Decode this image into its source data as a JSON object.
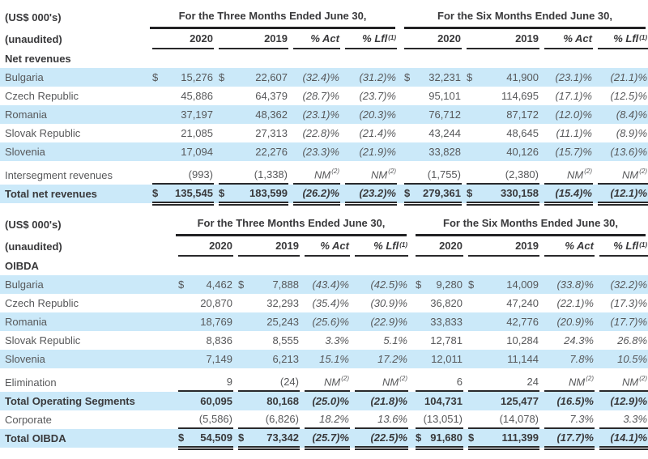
{
  "colors": {
    "row_highlight": "#cbe9f9",
    "text": "#57585a",
    "text_dark": "#39393b",
    "rule_line": "#29292b"
  },
  "labels": {
    "currency_units": "(US$ 000's)",
    "unaudited": "(unaudited)",
    "three_months": "For the Three Months Ended June 30,",
    "six_months": "For the Six Months Ended June 30,",
    "year_2020": "2020",
    "year_2019": "2019",
    "pct_act": "% Act",
    "pct_lfl": "% Lfl",
    "pct_lfl_sup": "(1)",
    "dollar": "$"
  },
  "tables": [
    {
      "id": "net_revenues",
      "section": "Net revenues",
      "rows": [
        {
          "label": "Bulgaria",
          "blue": true,
          "cells": [
            {
              "t": "15,276",
              "d": 1
            },
            {
              "t": "22,607",
              "d": 1
            },
            {
              "t": "(32.4)%",
              "i": 1
            },
            {
              "t": "(31.2)%",
              "i": 1
            },
            {
              "t": "32,231",
              "d": 1
            },
            {
              "t": "41,900",
              "d": 1
            },
            {
              "t": "(23.1)%",
              "i": 1
            },
            {
              "t": "(21.1)%",
              "i": 1
            }
          ]
        },
        {
          "label": "Czech Republic",
          "cells": [
            {
              "t": "45,886"
            },
            {
              "t": "64,379"
            },
            {
              "t": "(28.7)%",
              "i": 1
            },
            {
              "t": "(23.7)%",
              "i": 1
            },
            {
              "t": "95,101"
            },
            {
              "t": "114,695"
            },
            {
              "t": "(17.1)%",
              "i": 1
            },
            {
              "t": "(12.5)%",
              "i": 1
            }
          ]
        },
        {
          "label": "Romania",
          "blue": true,
          "cells": [
            {
              "t": "37,197"
            },
            {
              "t": "48,362"
            },
            {
              "t": "(23.1)%",
              "i": 1
            },
            {
              "t": "(20.3)%",
              "i": 1
            },
            {
              "t": "76,712"
            },
            {
              "t": "87,172"
            },
            {
              "t": "(12.0)%",
              "i": 1
            },
            {
              "t": "(8.4)%",
              "i": 1
            }
          ]
        },
        {
          "label": "Slovak Republic",
          "cells": [
            {
              "t": "21,085"
            },
            {
              "t": "27,313"
            },
            {
              "t": "(22.8)%",
              "i": 1
            },
            {
              "t": "(21.4)%",
              "i": 1
            },
            {
              "t": "43,244"
            },
            {
              "t": "48,645"
            },
            {
              "t": "(11.1)%",
              "i": 1
            },
            {
              "t": "(8.9)%",
              "i": 1
            }
          ]
        },
        {
          "label": "Slovenia",
          "blue": true,
          "cells": [
            {
              "t": "17,094"
            },
            {
              "t": "22,276"
            },
            {
              "t": "(23.3)%",
              "i": 1
            },
            {
              "t": "(21.9)%",
              "i": 1
            },
            {
              "t": "33,828"
            },
            {
              "t": "40,126"
            },
            {
              "t": "(15.7)%",
              "i": 1
            },
            {
              "t": "(13.6)%",
              "i": 1
            }
          ]
        },
        {
          "label": "Intersegment revenues",
          "gap_above": true,
          "ul": "single",
          "cells": [
            {
              "t": "(993)"
            },
            {
              "t": "(1,338)"
            },
            {
              "t": "NM",
              "i": 1,
              "sup": "(2)"
            },
            {
              "t": "NM",
              "i": 1,
              "sup": "(2)"
            },
            {
              "t": "(1,755)"
            },
            {
              "t": "(2,380)"
            },
            {
              "t": "NM",
              "i": 1,
              "sup": "(2)"
            },
            {
              "t": "NM",
              "i": 1,
              "sup": "(2)"
            }
          ]
        },
        {
          "label": "Total net revenues",
          "blue": true,
          "bold": true,
          "ul": "double",
          "cells": [
            {
              "t": "135,545",
              "d": 1
            },
            {
              "t": "183,599",
              "d": 1
            },
            {
              "t": "(26.2)%",
              "i": 1
            },
            {
              "t": "(23.2)%",
              "i": 1
            },
            {
              "t": "279,361",
              "d": 1
            },
            {
              "t": "330,158",
              "d": 1
            },
            {
              "t": "(15.4)%",
              "i": 1
            },
            {
              "t": "(12.1)%",
              "i": 1
            }
          ]
        }
      ]
    },
    {
      "id": "oibda",
      "section": "OIBDA",
      "rows": [
        {
          "label": "Bulgaria",
          "blue": true,
          "cells": [
            {
              "t": "4,462",
              "d": 1
            },
            {
              "t": "7,888",
              "d": 1
            },
            {
              "t": "(43.4)%",
              "i": 1
            },
            {
              "t": "(42.5)%",
              "i": 1
            },
            {
              "t": "9,280",
              "d": 1
            },
            {
              "t": "14,009",
              "d": 1
            },
            {
              "t": "(33.8)%",
              "i": 1
            },
            {
              "t": "(32.2)%",
              "i": 1
            }
          ]
        },
        {
          "label": "Czech Republic",
          "cells": [
            {
              "t": "20,870"
            },
            {
              "t": "32,293"
            },
            {
              "t": "(35.4)%",
              "i": 1
            },
            {
              "t": "(30.9)%",
              "i": 1
            },
            {
              "t": "36,820"
            },
            {
              "t": "47,240"
            },
            {
              "t": "(22.1)%",
              "i": 1
            },
            {
              "t": "(17.3)%",
              "i": 1
            }
          ]
        },
        {
          "label": "Romania",
          "blue": true,
          "cells": [
            {
              "t": "18,769"
            },
            {
              "t": "25,243"
            },
            {
              "t": "(25.6)%",
              "i": 1
            },
            {
              "t": "(22.9)%",
              "i": 1
            },
            {
              "t": "33,833"
            },
            {
              "t": "42,776"
            },
            {
              "t": "(20.9)%",
              "i": 1
            },
            {
              "t": "(17.7)%",
              "i": 1
            }
          ]
        },
        {
          "label": "Slovak Republic",
          "cells": [
            {
              "t": "8,836"
            },
            {
              "t": "8,555"
            },
            {
              "t": "3.3%",
              "i": 1
            },
            {
              "t": "5.1%",
              "i": 1
            },
            {
              "t": "12,781"
            },
            {
              "t": "10,284"
            },
            {
              "t": "24.3%",
              "i": 1
            },
            {
              "t": "26.8%",
              "i": 1
            }
          ]
        },
        {
          "label": "Slovenia",
          "blue": true,
          "cells": [
            {
              "t": "7,149"
            },
            {
              "t": "6,213"
            },
            {
              "t": "15.1%",
              "i": 1
            },
            {
              "t": "17.2%",
              "i": 1
            },
            {
              "t": "12,011"
            },
            {
              "t": "11,144"
            },
            {
              "t": "7.8%",
              "i": 1
            },
            {
              "t": "10.5%",
              "i": 1
            }
          ]
        },
        {
          "label": "Elimination",
          "gap_above": true,
          "ul": "single",
          "cells": [
            {
              "t": "9"
            },
            {
              "t": "(24)"
            },
            {
              "t": "NM",
              "i": 1,
              "sup": "(2)"
            },
            {
              "t": "NM",
              "i": 1,
              "sup": "(2)"
            },
            {
              "t": "6"
            },
            {
              "t": "24"
            },
            {
              "t": "NM",
              "i": 1,
              "sup": "(2)"
            },
            {
              "t": "NM",
              "i": 1,
              "sup": "(2)"
            }
          ]
        },
        {
          "label": "Total Operating Segments",
          "blue": true,
          "bold": true,
          "cells": [
            {
              "t": "60,095"
            },
            {
              "t": "80,168"
            },
            {
              "t": "(25.0)%",
              "i": 1
            },
            {
              "t": "(21.8)%",
              "i": 1
            },
            {
              "t": "104,731"
            },
            {
              "t": "125,477"
            },
            {
              "t": "(16.5)%",
              "i": 1
            },
            {
              "t": "(12.9)%",
              "i": 1
            }
          ]
        },
        {
          "label": "Corporate",
          "ul": "single",
          "cells": [
            {
              "t": "(5,586)"
            },
            {
              "t": "(6,826)"
            },
            {
              "t": "18.2%",
              "i": 1
            },
            {
              "t": "13.6%",
              "i": 1
            },
            {
              "t": "(13,051)"
            },
            {
              "t": "(14,078)"
            },
            {
              "t": "7.3%",
              "i": 1
            },
            {
              "t": "3.3%",
              "i": 1
            }
          ]
        },
        {
          "label": "Total OIBDA",
          "blue": true,
          "bold": true,
          "ul": "double",
          "cells": [
            {
              "t": "54,509",
              "d": 1
            },
            {
              "t": "73,342",
              "d": 1
            },
            {
              "t": "(25.7)%",
              "i": 1
            },
            {
              "t": "(22.5)%",
              "i": 1
            },
            {
              "t": "91,680",
              "d": 1
            },
            {
              "t": "111,399",
              "d": 1
            },
            {
              "t": "(17.7)%",
              "i": 1
            },
            {
              "t": "(14.1)%",
              "i": 1
            }
          ]
        }
      ]
    }
  ]
}
